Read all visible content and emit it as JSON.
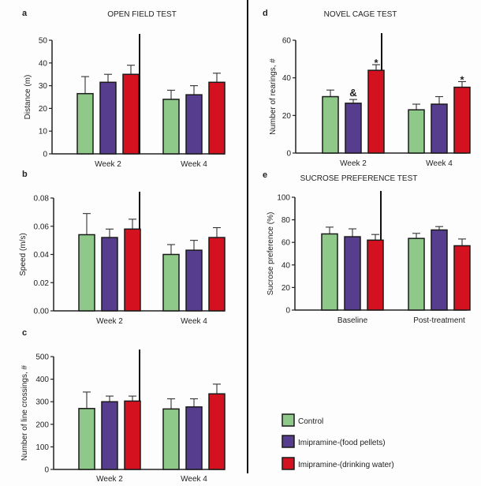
{
  "legend": [
    {
      "label": "Control",
      "color": "#8ec98a"
    },
    {
      "label": "Imipramine-(food pellets)",
      "color": "#563d8e"
    },
    {
      "label": "Imipramine-(drinking water)",
      "color": "#d3111f"
    }
  ],
  "chart_data": [
    {
      "id": "a",
      "type": "bar",
      "letter": "a",
      "title": "OPEN FIELD TEST",
      "ylabel": "Distance (m)",
      "categories": [
        "Week 2",
        "Week 4"
      ],
      "ylim": [
        0,
        50
      ],
      "yticks": [
        "0",
        "10",
        "20",
        "30",
        "40",
        "50"
      ],
      "ytick_values": [
        0,
        10,
        20,
        30,
        40,
        50
      ],
      "series": [
        {
          "name": "Control",
          "values": [
            26.5,
            24
          ],
          "error_top": [
            34,
            28
          ]
        },
        {
          "name": "Imipramine-(food pellets)",
          "values": [
            31.5,
            26
          ],
          "error_top": [
            35,
            30
          ]
        },
        {
          "name": "Imipramine-(drinking water)",
          "values": [
            35,
            31.5
          ],
          "error_top": [
            39,
            35.5
          ]
        }
      ],
      "annotations": []
    },
    {
      "id": "b",
      "type": "bar",
      "letter": "b",
      "title": "",
      "ylabel": "Speed (m/s)",
      "categories": [
        "Week 2",
        "Week 4"
      ],
      "ylim": [
        0,
        0.08
      ],
      "yticks": [
        "0.00",
        "0.02",
        "0.04",
        "0.06",
        "0.08"
      ],
      "ytick_values": [
        0,
        0.02,
        0.04,
        0.06,
        0.08
      ],
      "series": [
        {
          "name": "Control",
          "values": [
            0.054,
            0.04
          ],
          "error_top": [
            0.069,
            0.047
          ]
        },
        {
          "name": "Imipramine-(food pellets)",
          "values": [
            0.052,
            0.043
          ],
          "error_top": [
            0.058,
            0.05
          ]
        },
        {
          "name": "Imipramine-(drinking water)",
          "values": [
            0.058,
            0.052
          ],
          "error_top": [
            0.065,
            0.059
          ]
        }
      ],
      "annotations": []
    },
    {
      "id": "c",
      "type": "bar",
      "letter": "c",
      "title": "",
      "ylabel": "Number of line crossings, #",
      "categories": [
        "Week 2",
        "Week 4"
      ],
      "ylim": [
        0,
        500
      ],
      "yticks": [
        "0",
        "100",
        "200",
        "300",
        "400",
        "500"
      ],
      "ytick_values": [
        0,
        100,
        200,
        300,
        400,
        500
      ],
      "series": [
        {
          "name": "Control",
          "values": [
            270,
            268
          ],
          "error_top": [
            343,
            313
          ]
        },
        {
          "name": "Imipramine-(food pellets)",
          "values": [
            300,
            277
          ],
          "error_top": [
            325,
            313
          ]
        },
        {
          "name": "Imipramine-(drinking water)",
          "values": [
            303,
            335
          ],
          "error_top": [
            325,
            378
          ]
        }
      ],
      "annotations": []
    },
    {
      "id": "d",
      "type": "bar",
      "letter": "d",
      "title": "NOVEL CAGE TEST",
      "ylabel": "Number of rearings, #",
      "categories": [
        "Week 2",
        "Week 4"
      ],
      "ylim": [
        0,
        60
      ],
      "yticks": [
        "0",
        "20",
        "40",
        "60"
      ],
      "ytick_values": [
        0,
        20,
        40,
        60
      ],
      "series": [
        {
          "name": "Control",
          "values": [
            30,
            23
          ],
          "error_top": [
            33.5,
            26
          ]
        },
        {
          "name": "Imipramine-(food pellets)",
          "values": [
            26.5,
            26
          ],
          "error_top": [
            28.5,
            30
          ]
        },
        {
          "name": "Imipramine-(drinking water)",
          "values": [
            44,
            35
          ],
          "error_top": [
            47,
            38
          ]
        }
      ],
      "annotations": [
        {
          "category": 0,
          "series": 1,
          "text": "&"
        },
        {
          "category": 0,
          "series": 2,
          "text": "*"
        },
        {
          "category": 1,
          "series": 2,
          "text": "*"
        }
      ]
    },
    {
      "id": "e",
      "type": "bar",
      "letter": "e",
      "title": "SUCROSE PREFERENCE TEST",
      "ylabel": "Sucrose preference (%)",
      "categories": [
        "Baseline",
        "Post-treatment"
      ],
      "ylim": [
        0,
        100
      ],
      "yticks": [
        "0",
        "20",
        "40",
        "60",
        "80",
        "100"
      ],
      "ytick_values": [
        0,
        20,
        40,
        60,
        80,
        100
      ],
      "series": [
        {
          "name": "Control",
          "values": [
            67.5,
            63.5
          ],
          "error_top": [
            73.5,
            68
          ]
        },
        {
          "name": "Imipramine-(food pellets)",
          "values": [
            65,
            71
          ],
          "error_top": [
            72,
            74
          ]
        },
        {
          "name": "Imipramine-(drinking water)",
          "values": [
            62,
            57
          ],
          "error_top": [
            67,
            63
          ]
        }
      ],
      "annotations": []
    }
  ]
}
